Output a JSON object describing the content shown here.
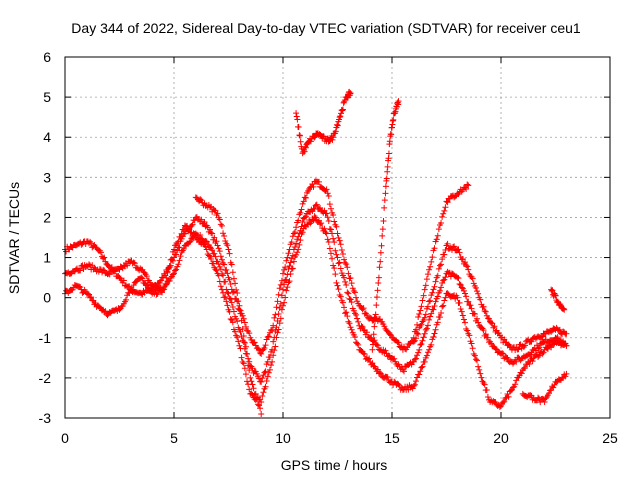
{
  "chart_data": {
    "type": "scatter",
    "title": "Day 344 of 2022, Sidereal Day-to-day VTEC variation (SDTVAR) for receiver ceu1",
    "xlabel": "GPS time / hours",
    "ylabel": "SDTVAR / TECUs",
    "xlim": [
      0,
      25
    ],
    "ylim": [
      -3,
      6
    ],
    "x_ticks": [
      "0",
      "5",
      "10",
      "15",
      "20",
      "25"
    ],
    "y_ticks": [
      "-3",
      "-2",
      "-1",
      "0",
      "1",
      "2",
      "3",
      "4",
      "5",
      "6"
    ],
    "grid": true,
    "legend": "none",
    "marker": "plus",
    "color": "#ff0000",
    "series": [
      {
        "x": [
          0.0,
          0.5,
          1.0,
          1.5,
          2.0,
          2.5,
          3.0,
          3.5,
          4.0,
          4.5,
          5.0,
          5.5,
          6.0,
          6.5,
          7.0,
          7.5,
          8.0,
          8.5,
          9.0,
          9.5,
          10.0,
          10.5,
          11.0,
          11.5,
          12.0,
          12.5,
          13.0,
          13.5,
          14.0,
          14.5,
          15.0,
          15.5,
          16.0,
          16.5,
          17.0,
          17.5,
          18.0,
          18.5,
          19.0,
          19.5,
          20.0,
          20.5,
          21.0,
          21.5,
          22.0,
          22.5,
          23.0
        ],
        "y": [
          1.2,
          1.3,
          1.4,
          1.2,
          0.8,
          0.5,
          0.2,
          0.1,
          0.2,
          0.5,
          1.0,
          1.6,
          2.0,
          1.8,
          1.3,
          0.5,
          -0.3,
          -1.0,
          -1.4,
          -0.8,
          0.6,
          1.6,
          2.5,
          2.9,
          2.7,
          1.6,
          0.6,
          -0.2,
          -0.5,
          -0.6,
          -1.0,
          -1.3,
          -1.1,
          -0.5,
          0.4,
          1.3,
          1.2,
          0.7,
          0.0,
          -0.6,
          -1.0,
          -1.3,
          -1.2,
          -1.0,
          -0.9,
          -0.8,
          -0.9
        ]
      },
      {
        "x": [
          0.0,
          0.5,
          1.0,
          1.5,
          2.0,
          2.5,
          3.0,
          3.5,
          4.0,
          4.5,
          5.0,
          5.5,
          6.0,
          6.5,
          7.0,
          7.5,
          8.0,
          8.5,
          9.0,
          9.5,
          10.0,
          10.5,
          11.0,
          11.5,
          12.0,
          12.5,
          13.0,
          13.5,
          14.0,
          14.5,
          15.0,
          15.5,
          16.0,
          16.5,
          17.0,
          17.5,
          18.0,
          18.5,
          19.0,
          19.5,
          20.0,
          20.5,
          21.0,
          21.5,
          22.0,
          22.5,
          23.0
        ],
        "y": [
          0.6,
          0.7,
          0.8,
          0.7,
          0.6,
          0.7,
          0.9,
          0.7,
          0.3,
          0.2,
          0.6,
          1.3,
          1.6,
          1.4,
          0.9,
          0.1,
          -0.8,
          -1.7,
          -2.1,
          -1.3,
          0.2,
          1.2,
          2.0,
          2.3,
          2.1,
          1.0,
          0.1,
          -0.7,
          -1.0,
          -1.3,
          -1.5,
          -1.8,
          -1.6,
          -0.9,
          -0.1,
          0.6,
          0.5,
          -0.1,
          -0.7,
          -1.1,
          -1.4,
          -1.6,
          -1.5,
          -1.3,
          -1.1,
          -1.0,
          -1.2
        ]
      },
      {
        "x": [
          0.0,
          0.5,
          1.0,
          1.5,
          2.0,
          2.5,
          3.0,
          3.5,
          4.0,
          4.5,
          5.0,
          5.5,
          6.0,
          6.5,
          7.0,
          7.5,
          8.0,
          8.5,
          9.0,
          9.5,
          10.0,
          10.5,
          11.0,
          11.5,
          12.0,
          12.5,
          13.0,
          13.5,
          14.0,
          14.5,
          15.0,
          15.5,
          16.0,
          16.5,
          17.0,
          17.5,
          18.0,
          18.5,
          19.0,
          19.5,
          20.0,
          20.5,
          21.0,
          21.5,
          22.0,
          22.5,
          23.0
        ],
        "y": [
          0.1,
          0.3,
          0.1,
          -0.2,
          -0.4,
          -0.3,
          0.2,
          0.5,
          0.1,
          0.2,
          1.2,
          1.8,
          1.5,
          1.2,
          0.6,
          -0.3,
          -1.2,
          -2.4,
          -2.6,
          -1.6,
          -0.2,
          0.9,
          1.8,
          2.0,
          1.6,
          0.3,
          -0.6,
          -1.3,
          -1.6,
          -1.9,
          -2.1,
          -2.3,
          -2.2,
          -1.6,
          -0.8,
          0.1,
          0.0,
          -0.9,
          -1.8,
          -2.6,
          -2.7,
          -2.3,
          -1.8,
          -1.5,
          -1.3,
          -1.1,
          -1.2
        ]
      },
      {
        "x": [
          10.6,
          10.9,
          11.2,
          11.6,
          12.0,
          12.3,
          12.6,
          12.9,
          13.1
        ],
        "y": [
          4.6,
          3.6,
          3.9,
          4.1,
          3.9,
          4.0,
          4.5,
          5.0,
          5.1
        ]
      },
      {
        "x": [
          6.0,
          6.5,
          7.0,
          7.5,
          8.0,
          8.5,
          9.0
        ],
        "y": [
          2.5,
          2.3,
          2.1,
          1.2,
          -0.2,
          -2.0,
          -2.9
        ]
      },
      {
        "x": [
          14.1,
          14.4,
          14.7,
          14.9,
          15.1,
          15.3
        ],
        "y": [
          -1.3,
          0.5,
          2.6,
          3.9,
          4.6,
          4.9
        ]
      },
      {
        "x": [
          16.0,
          16.5,
          17.0,
          17.5,
          18.0,
          18.5
        ],
        "y": [
          -1.0,
          0.2,
          1.4,
          2.4,
          2.6,
          2.8
        ]
      },
      {
        "x": [
          21.0,
          21.5,
          22.0,
          22.5,
          23.0
        ],
        "y": [
          -2.4,
          -2.5,
          -2.6,
          -2.1,
          -1.9
        ]
      },
      {
        "x": [
          22.3,
          22.6,
          22.9
        ],
        "y": [
          0.2,
          -0.1,
          -0.3
        ]
      }
    ]
  }
}
